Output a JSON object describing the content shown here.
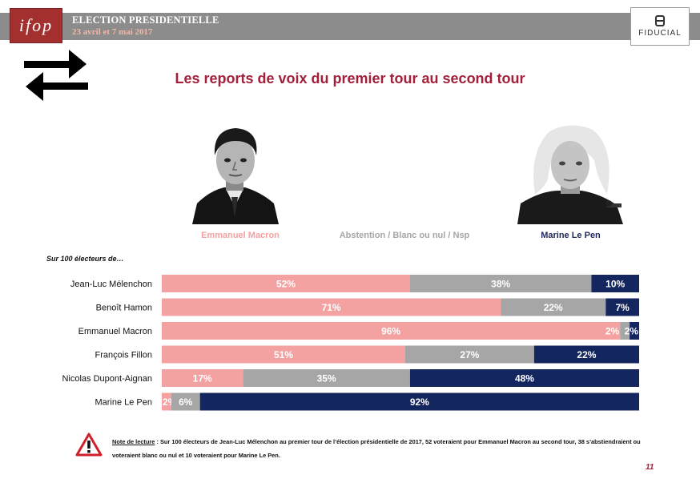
{
  "header": {
    "title": "ELECTION PRESIDENTIELLE",
    "dates": "23 avril et 7 mai 2017",
    "ifop_logo": "ifop",
    "fiducial_logo": "FIDUCIAL"
  },
  "title": "Les reports de voix du premier tour au second tour",
  "colors": {
    "macron": "#f4a1a1",
    "abstention": "#a6a6a6",
    "lepen": "#14265e",
    "title": "#a3203a",
    "header_band": "#8c8c8c"
  },
  "icons": [
    "swap-arrows-icon",
    "warning-icon",
    "macron-portrait",
    "lepen-portrait"
  ],
  "subheading": "Sur 100 électeurs de…",
  "chart_data": {
    "type": "bar",
    "orientation": "horizontal-stacked-100",
    "series_labels": [
      "Emmanuel Macron",
      "Abstention / Blanc ou nul / Nsp",
      "Marine Le Pen"
    ],
    "categories": [
      "Jean-Luc Mélenchon",
      "Benoît Hamon",
      "Emmanuel Macron",
      "François Fillon",
      "Nicolas Dupont-Aignan",
      "Marine Le Pen"
    ],
    "series": [
      {
        "name": "Emmanuel Macron",
        "values": [
          52,
          71,
          96,
          51,
          17,
          2
        ]
      },
      {
        "name": "Abstention / Blanc ou nul / Nsp",
        "values": [
          38,
          22,
          2,
          27,
          35,
          6
        ]
      },
      {
        "name": "Marine Le Pen",
        "values": [
          10,
          7,
          2,
          22,
          48,
          92
        ]
      }
    ],
    "value_suffix": "%",
    "xlim": [
      0,
      100
    ]
  },
  "note": {
    "label": "Note de lecture",
    "text": " : Sur 100 électeurs de Jean-Luc Mélenchon au premier tour de l’élection présidentielle de 2017, 52 voteraient pour Emmanuel Macron au second tour, 38 s’abstiendraient ou voteraient blanc ou nul et 10 voteraient pour Marine Le Pen."
  },
  "page_number": "11"
}
